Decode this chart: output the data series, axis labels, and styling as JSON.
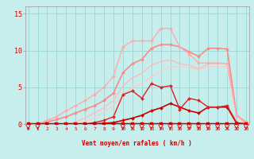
{
  "xlabel": "Vent moyen/en rafales ( km/h )",
  "ylabel_ticks": [
    0,
    5,
    10,
    15
  ],
  "xticks": [
    0,
    1,
    2,
    3,
    4,
    5,
    6,
    7,
    8,
    9,
    10,
    11,
    12,
    13,
    14,
    15,
    16,
    17,
    18,
    19,
    20,
    21,
    22,
    23
  ],
  "xlim": [
    -0.3,
    23.3
  ],
  "ylim": [
    0,
    16
  ],
  "bg_color": "#c5eeed",
  "grid_color": "#a0d8d8",
  "lines": [
    {
      "x": [
        0,
        1,
        2,
        3,
        4,
        5,
        6,
        7,
        8,
        9,
        10,
        11,
        12,
        13,
        14,
        15,
        16,
        17,
        18,
        19,
        20,
        21,
        22,
        23
      ],
      "y": [
        0,
        0,
        0,
        0,
        0,
        0,
        0,
        0,
        0,
        0,
        0,
        0,
        0,
        0,
        0,
        0,
        0,
        0,
        0,
        0,
        0,
        0,
        0,
        0
      ],
      "color": "#cc0000",
      "lw": 2.5,
      "marker": "s",
      "ms": 2.5,
      "zorder": 5
    },
    {
      "x": [
        0,
        1,
        2,
        3,
        4,
        5,
        6,
        7,
        8,
        9,
        10,
        11,
        12,
        13,
        14,
        15,
        16,
        17,
        18,
        19,
        20,
        21,
        22,
        23
      ],
      "y": [
        0,
        0,
        0,
        0,
        0,
        0,
        0,
        0,
        0.1,
        0.2,
        0.5,
        0.8,
        1.2,
        1.8,
        2.2,
        2.8,
        2.3,
        1.8,
        1.5,
        2.3,
        2.3,
        2.3,
        0.1,
        0
      ],
      "color": "#cc0000",
      "lw": 1.2,
      "marker": "D",
      "ms": 2.0,
      "zorder": 4
    },
    {
      "x": [
        0,
        1,
        2,
        3,
        4,
        5,
        6,
        7,
        8,
        9,
        10,
        11,
        12,
        13,
        14,
        15,
        16,
        17,
        18,
        19,
        20,
        21,
        22,
        23
      ],
      "y": [
        0,
        0,
        0,
        0,
        0,
        0,
        0,
        0.2,
        0.5,
        1.0,
        4.0,
        4.5,
        3.5,
        5.5,
        5.0,
        5.2,
        2.0,
        3.5,
        3.2,
        2.3,
        2.3,
        2.5,
        0.2,
        0
      ],
      "color": "#dd2222",
      "lw": 1.0,
      "marker": "D",
      "ms": 2.0,
      "zorder": 4
    },
    {
      "x": [
        0,
        1,
        2,
        3,
        4,
        5,
        6,
        7,
        8,
        9,
        10,
        11,
        12,
        13,
        14,
        15,
        16,
        17,
        18,
        19,
        20,
        21,
        22,
        23
      ],
      "y": [
        0,
        0,
        0.3,
        0.6,
        1.0,
        1.5,
        2.0,
        2.5,
        3.2,
        4.2,
        7.0,
        8.2,
        8.8,
        10.3,
        10.8,
        10.8,
        10.5,
        9.8,
        9.2,
        10.3,
        10.3,
        10.2,
        1.2,
        0.2
      ],
      "color": "#ff8888",
      "lw": 1.2,
      "marker": "D",
      "ms": 2.0,
      "zorder": 3
    },
    {
      "x": [
        0,
        1,
        2,
        3,
        4,
        5,
        6,
        7,
        8,
        9,
        10,
        11,
        12,
        13,
        14,
        15,
        16,
        17,
        18,
        19,
        20,
        21,
        22,
        23
      ],
      "y": [
        0,
        0,
        0.5,
        1.0,
        1.8,
        2.5,
        3.2,
        4.0,
        5.0,
        6.5,
        10.5,
        11.3,
        11.3,
        11.3,
        13.0,
        13.0,
        10.5,
        9.5,
        8.3,
        8.3,
        8.3,
        8.2,
        1.2,
        0.3
      ],
      "color": "#ffaaaa",
      "lw": 1.0,
      "marker": "D",
      "ms": 2.0,
      "zorder": 3
    },
    {
      "x": [
        0,
        1,
        2,
        3,
        4,
        5,
        6,
        7,
        8,
        9,
        10,
        11,
        12,
        13,
        14,
        15,
        16,
        17,
        18,
        19,
        20,
        21,
        22,
        23
      ],
      "y": [
        0,
        0,
        0,
        0,
        0,
        0.3,
        0.8,
        1.5,
        2.2,
        3.2,
        5.2,
        6.3,
        6.9,
        8.0,
        8.5,
        8.7,
        8.2,
        8.0,
        7.5,
        8.2,
        8.2,
        8.2,
        1.2,
        0.2
      ],
      "color": "#ffbbbb",
      "lw": 1.0,
      "marker": null,
      "ms": 0,
      "zorder": 2
    },
    {
      "x": [
        0,
        1,
        2,
        3,
        4,
        5,
        6,
        7,
        8,
        9,
        10,
        11,
        12,
        13,
        14,
        15,
        16,
        17,
        18,
        19,
        20,
        21,
        22,
        23
      ],
      "y": [
        0,
        0,
        0,
        0,
        0,
        0,
        0.3,
        0.9,
        1.6,
        2.5,
        4.0,
        4.9,
        5.6,
        6.4,
        7.2,
        7.8,
        7.8,
        7.8,
        7.3,
        7.8,
        7.8,
        7.8,
        1.0,
        0
      ],
      "color": "#ffcccc",
      "lw": 1.0,
      "marker": null,
      "ms": 0,
      "zorder": 2
    }
  ],
  "xlabel_color": "#cc0000",
  "tick_color": "#cc0000"
}
